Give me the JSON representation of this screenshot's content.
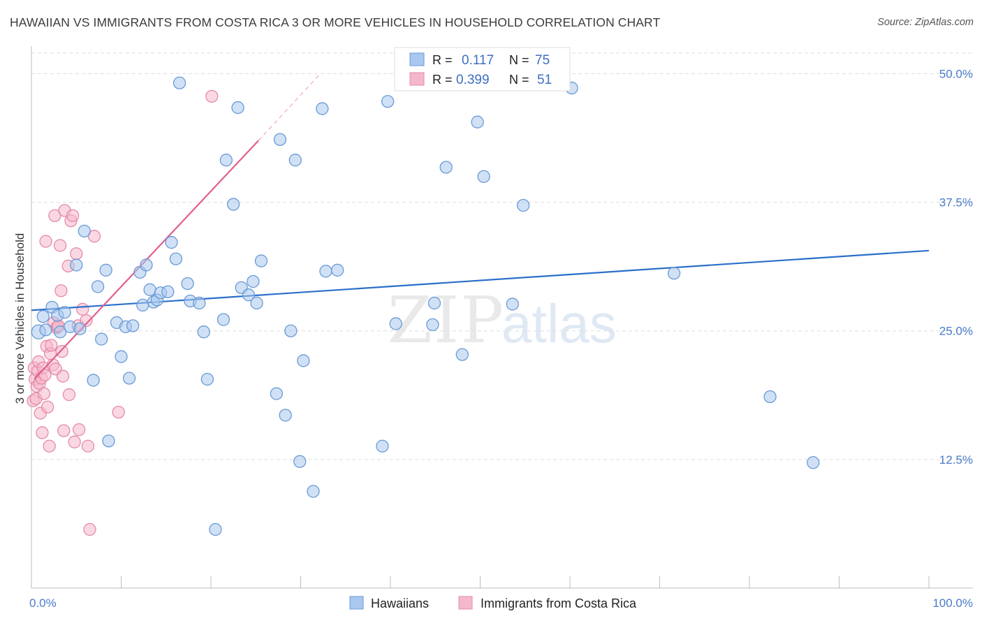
{
  "title": "HAWAIIAN VS IMMIGRANTS FROM COSTA RICA 3 OR MORE VEHICLES IN HOUSEHOLD CORRELATION CHART",
  "source": "Source: ZipAtlas.com",
  "watermark": {
    "part1": "ZIP",
    "part2": "atlas"
  },
  "colors": {
    "blue_fill": "#a9c8ef",
    "blue_stroke": "#6a9ad6",
    "blue_line": "#2a6fc9",
    "pink_fill": "#f5b8cb",
    "pink_stroke": "#e58aa8",
    "pink_line": "#e0608e",
    "grid": "#dedede",
    "tick_text": "#4a7cc7"
  },
  "legend_stats": {
    "rows": [
      {
        "r_label": "R =",
        "r_value": "0.117",
        "n_label": "N =",
        "n_value": "75"
      },
      {
        "r_label": "R =",
        "r_value": "0.399",
        "n_label": "N =",
        "n_value": "51"
      }
    ]
  },
  "chart_data": {
    "type": "scatter",
    "title": "HAWAIIAN VS IMMIGRANTS FROM COSTA RICA 3 OR MORE VEHICLES IN HOUSEHOLD CORRELATION CHART",
    "xlabel": "",
    "ylabel": "3 or more Vehicles in Household",
    "xlim": [
      0,
      100
    ],
    "ylim": [
      0,
      52
    ],
    "x_tick_labels": [
      "0.0%",
      "100.0%"
    ],
    "y_ticks": [
      12.5,
      25.0,
      37.5,
      50.0
    ],
    "y_tick_labels": [
      "12.5%",
      "25.0%",
      "37.5%",
      "50.0%"
    ],
    "grid": true,
    "legend_position": "bottom-center",
    "series": [
      {
        "name": "Hawaiians",
        "R": 0.117,
        "N": 75,
        "trend": {
          "x": [
            0,
            100
          ],
          "y": [
            27.0,
            32.8
          ]
        },
        "points": [
          [
            0.8,
            24.9
          ],
          [
            1.3,
            26.4
          ],
          [
            1.6,
            25.1
          ],
          [
            2.3,
            27.3
          ],
          [
            2.9,
            26.5
          ],
          [
            3.2,
            24.9
          ],
          [
            3.7,
            26.8
          ],
          [
            4.3,
            25.4
          ],
          [
            5.0,
            31.4
          ],
          [
            5.4,
            25.2
          ],
          [
            5.9,
            34.7
          ],
          [
            6.9,
            20.2
          ],
          [
            7.4,
            29.3
          ],
          [
            7.8,
            24.2
          ],
          [
            8.3,
            30.9
          ],
          [
            8.6,
            14.3
          ],
          [
            9.5,
            25.8
          ],
          [
            10.0,
            22.5
          ],
          [
            10.5,
            25.4
          ],
          [
            10.9,
            20.4
          ],
          [
            11.3,
            25.5
          ],
          [
            12.1,
            30.7
          ],
          [
            12.4,
            27.5
          ],
          [
            12.8,
            31.4
          ],
          [
            13.2,
            29.0
          ],
          [
            13.6,
            27.8
          ],
          [
            14.0,
            28.0
          ],
          [
            14.4,
            28.7
          ],
          [
            15.2,
            28.8
          ],
          [
            15.6,
            33.6
          ],
          [
            16.1,
            32.0
          ],
          [
            16.5,
            49.1
          ],
          [
            17.4,
            29.6
          ],
          [
            17.7,
            27.9
          ],
          [
            18.7,
            27.7
          ],
          [
            19.2,
            24.9
          ],
          [
            19.6,
            20.3
          ],
          [
            20.5,
            5.7
          ],
          [
            21.4,
            26.1
          ],
          [
            21.7,
            41.6
          ],
          [
            22.5,
            37.3
          ],
          [
            23.0,
            46.7
          ],
          [
            23.4,
            29.2
          ],
          [
            24.2,
            28.5
          ],
          [
            24.7,
            29.8
          ],
          [
            25.1,
            27.7
          ],
          [
            25.6,
            31.8
          ],
          [
            27.3,
            18.9
          ],
          [
            27.7,
            43.6
          ],
          [
            28.3,
            16.8
          ],
          [
            28.9,
            25.0
          ],
          [
            29.4,
            41.6
          ],
          [
            29.9,
            12.3
          ],
          [
            30.3,
            22.1
          ],
          [
            31.4,
            9.4
          ],
          [
            32.4,
            46.6
          ],
          [
            32.8,
            30.8
          ],
          [
            34.1,
            30.9
          ],
          [
            39.1,
            13.8
          ],
          [
            39.7,
            47.3
          ],
          [
            40.6,
            25.7
          ],
          [
            44.7,
            25.6
          ],
          [
            44.9,
            27.7
          ],
          [
            46.2,
            40.9
          ],
          [
            48.0,
            22.7
          ],
          [
            49.7,
            45.3
          ],
          [
            50.4,
            40.0
          ],
          [
            53.6,
            27.6
          ],
          [
            54.8,
            37.2
          ],
          [
            60.2,
            48.6
          ],
          [
            71.6,
            30.6
          ],
          [
            82.3,
            18.6
          ],
          [
            87.1,
            12.2
          ]
        ]
      },
      {
        "name": "Immigrants from Costa Rica",
        "R": 0.399,
        "N": 51,
        "trend": {
          "x": [
            0.3,
            25.3
          ],
          "y": [
            20.3,
            43.5
          ]
        },
        "trend_dashed": {
          "x": [
            25.3,
            32.2
          ],
          "y": [
            43.5,
            50.0
          ]
        },
        "points": [
          [
            0.2,
            18.2
          ],
          [
            0.3,
            21.4
          ],
          [
            0.4,
            20.3
          ],
          [
            0.5,
            18.4
          ],
          [
            0.6,
            19.6
          ],
          [
            0.7,
            21.1
          ],
          [
            0.8,
            22.0
          ],
          [
            0.9,
            19.9
          ],
          [
            1.0,
            17.0
          ],
          [
            1.1,
            20.4
          ],
          [
            1.2,
            15.1
          ],
          [
            1.3,
            21.4
          ],
          [
            1.4,
            18.9
          ],
          [
            1.5,
            20.7
          ],
          [
            1.6,
            33.7
          ],
          [
            1.7,
            23.5
          ],
          [
            1.8,
            17.6
          ],
          [
            2.0,
            13.8
          ],
          [
            2.1,
            22.8
          ],
          [
            2.2,
            23.6
          ],
          [
            2.4,
            21.7
          ],
          [
            2.5,
            25.8
          ],
          [
            2.6,
            36.2
          ],
          [
            2.7,
            21.3
          ],
          [
            2.8,
            25.3
          ],
          [
            2.9,
            25.4
          ],
          [
            3.0,
            25.5
          ],
          [
            3.2,
            33.3
          ],
          [
            3.3,
            28.9
          ],
          [
            3.4,
            23.0
          ],
          [
            3.5,
            20.6
          ],
          [
            3.6,
            15.3
          ],
          [
            3.7,
            36.7
          ],
          [
            4.1,
            31.3
          ],
          [
            4.2,
            18.8
          ],
          [
            4.4,
            35.7
          ],
          [
            4.6,
            36.2
          ],
          [
            4.8,
            14.2
          ],
          [
            5.0,
            32.5
          ],
          [
            5.2,
            25.5
          ],
          [
            5.3,
            15.4
          ],
          [
            5.7,
            27.1
          ],
          [
            6.1,
            26.0
          ],
          [
            6.3,
            13.8
          ],
          [
            7.0,
            34.2
          ],
          [
            6.5,
            5.7
          ],
          [
            9.7,
            17.1
          ],
          [
            20.1,
            47.8
          ]
        ]
      }
    ]
  }
}
